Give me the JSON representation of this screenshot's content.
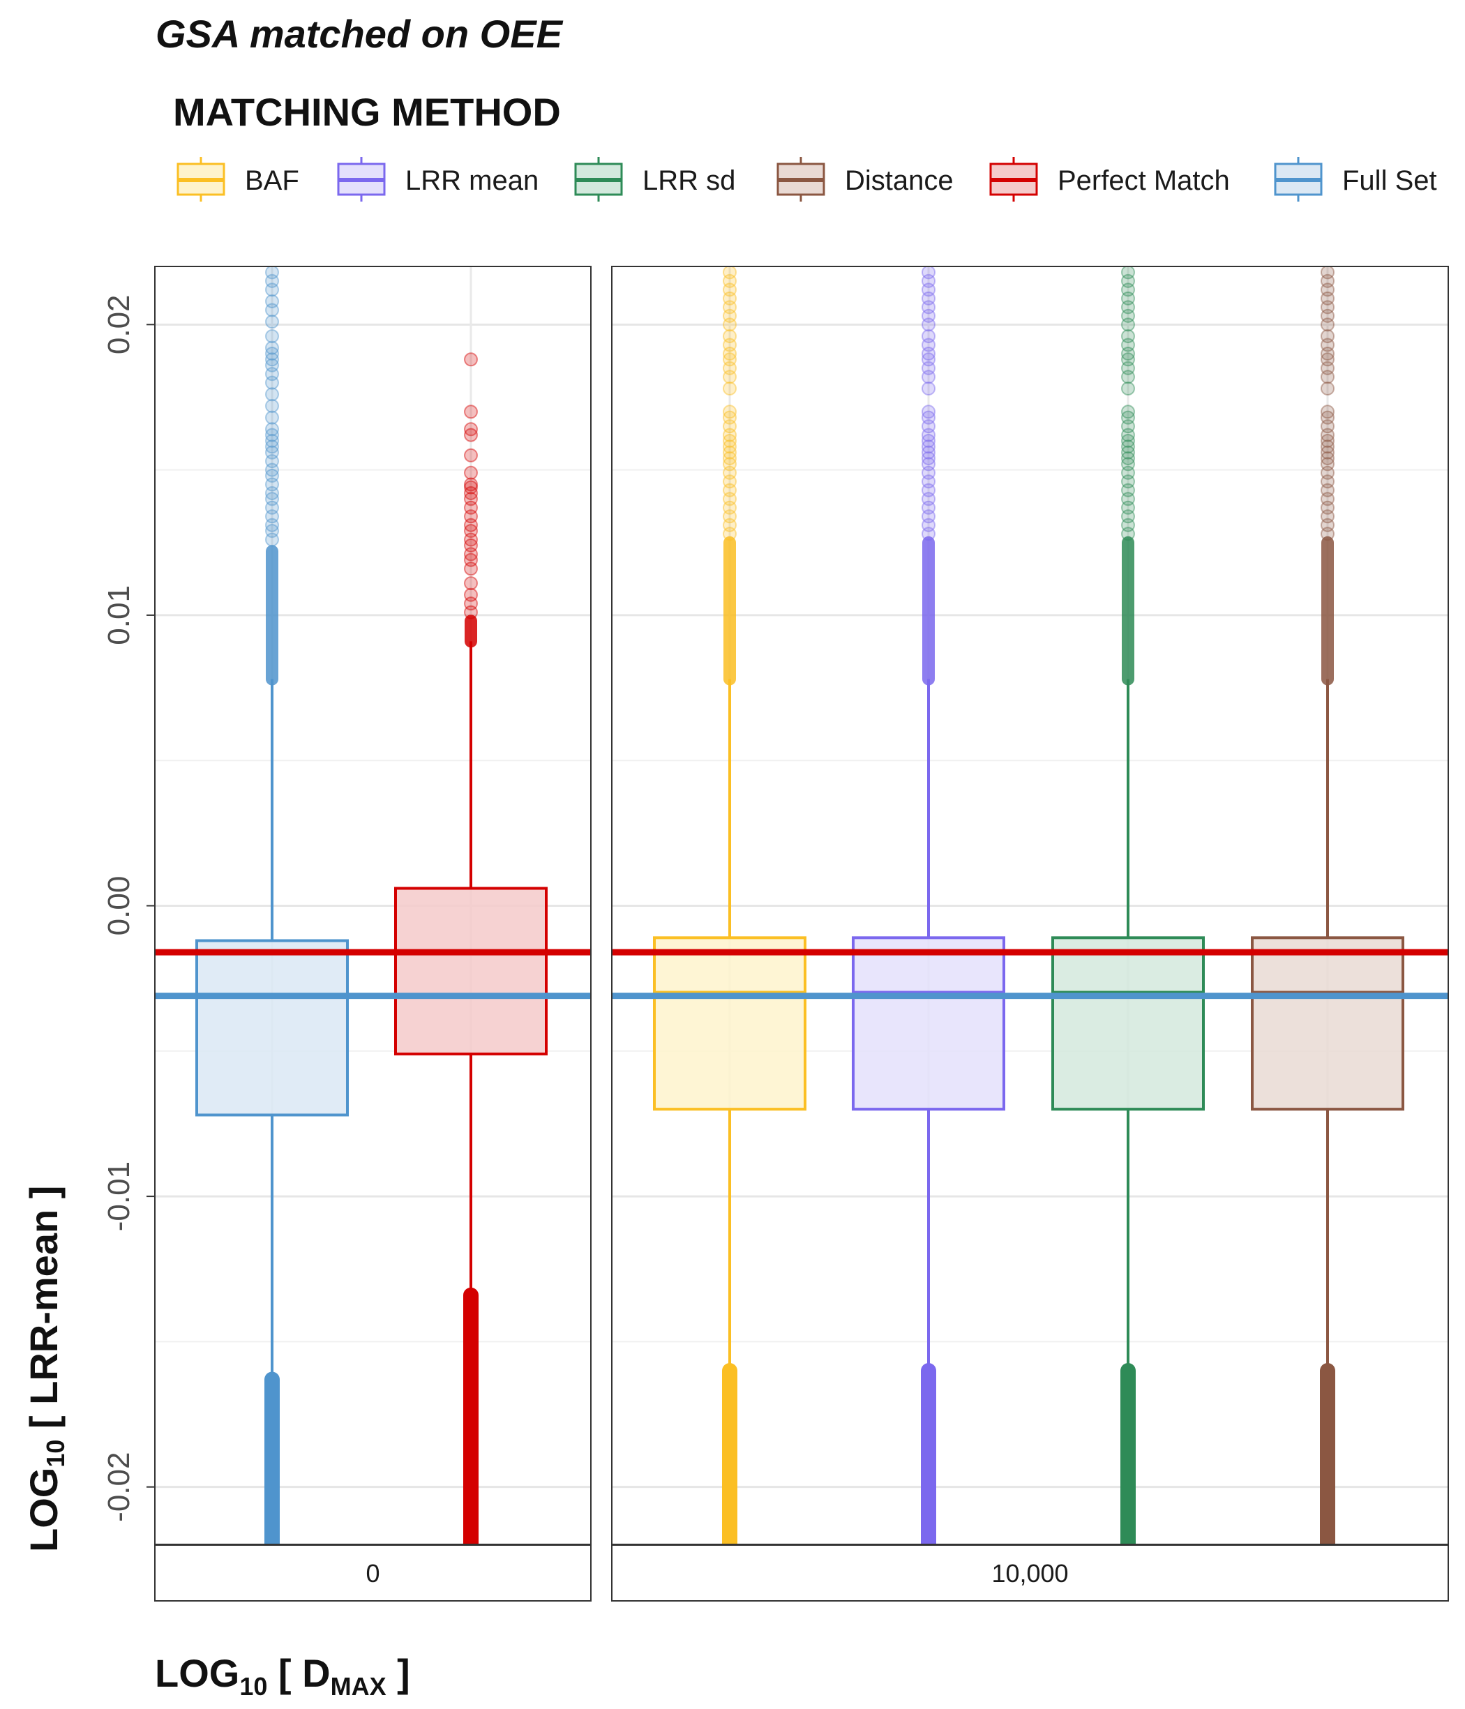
{
  "chart_data": {
    "type": "box",
    "title": "GSA matched on OEE",
    "legend": {
      "title": "MATCHING METHOD",
      "position": "top",
      "entries": [
        {
          "name": "BAF",
          "color": "#FBBF24",
          "fill": "#FEF3CD"
        },
        {
          "name": "LRR mean",
          "color": "#7B68EE",
          "fill": "#E4E0FC"
        },
        {
          "name": "LRR sd",
          "color": "#2E8B57",
          "fill": "#D3E9DD"
        },
        {
          "name": "Distance",
          "color": "#8B5742",
          "fill": "#E9DAD4"
        },
        {
          "name": "Perfect Match",
          "color": "#D40000",
          "fill": "#F5CACA"
        },
        {
          "name": "Full Set",
          "color": "#4F94CD",
          "fill": "#DBE8F4"
        }
      ]
    },
    "xlabel": {
      "main": "LOG",
      "sub": "10",
      "rest": " [ D",
      "sub2": "MAX",
      "end": " ]"
    },
    "ylabel": {
      "main": "LOG",
      "sub": "10",
      "rest": " [ LRR-mean ]"
    },
    "ylim": [
      -0.022,
      0.022
    ],
    "yticks": [
      -0.02,
      -0.01,
      0.0,
      0.01,
      0.02
    ],
    "ytick_labels": [
      "-0.02",
      "-0.01",
      "0.00",
      "0.01",
      "0.02"
    ],
    "grid": true,
    "reference_lines": [
      {
        "series": "Perfect Match",
        "y": -0.0016
      },
      {
        "series": "Full Set",
        "y": -0.0031
      }
    ],
    "facets": [
      {
        "label": "0",
        "boxes": [
          {
            "series": "Full Set",
            "q1": -0.0072,
            "median": -0.0031,
            "q3": -0.0012,
            "whisker_low": -0.0163,
            "whisker_high": 0.0078,
            "outlier_high_dense_top": 0.0122,
            "outlier_high_max": 0.0218,
            "outliers_high": [
              0.0126,
              0.0129,
              0.0131,
              0.0134,
              0.0137,
              0.014,
              0.0142,
              0.0145,
              0.0148,
              0.015,
              0.0153,
              0.0156,
              0.0158,
              0.016,
              0.0162,
              0.0164,
              0.0168,
              0.0172,
              0.0176,
              0.018,
              0.0183,
              0.0186,
              0.0188,
              0.019,
              0.0192,
              0.0196,
              0.0201,
              0.0205,
              0.0208,
              0.0212,
              0.0215,
              0.0218
            ]
          },
          {
            "series": "Perfect Match",
            "q1": -0.0051,
            "median": -0.0016,
            "q3": 0.0006,
            "whisker_low": -0.0134,
            "whisker_high": 0.0091,
            "outlier_high_dense_top": 0.0098,
            "outlier_high_max": 0.0188,
            "outliers_high": [
              0.0101,
              0.0104,
              0.0107,
              0.0111,
              0.0116,
              0.0119,
              0.0121,
              0.0124,
              0.0126,
              0.0129,
              0.0131,
              0.0134,
              0.0137,
              0.014,
              0.0142,
              0.0144,
              0.0145,
              0.0149,
              0.0155,
              0.0162,
              0.0164,
              0.017,
              0.0188
            ]
          }
        ]
      },
      {
        "label": "10,000",
        "boxes": [
          {
            "series": "BAF",
            "q1": -0.007,
            "median": -0.003,
            "q3": -0.0011,
            "whisker_low": -0.016,
            "whisker_high": 0.0078,
            "outlier_high_dense_top": 0.0125,
            "outlier_high_max": 0.0218,
            "outliers_high": [
              0.0128,
              0.0131,
              0.0134,
              0.0137,
              0.014,
              0.0143,
              0.0146,
              0.0149,
              0.0152,
              0.0154,
              0.0156,
              0.0158,
              0.016,
              0.0162,
              0.0165,
              0.0168,
              0.017,
              0.0178,
              0.0182,
              0.0185,
              0.0188,
              0.019,
              0.0193,
              0.0196,
              0.02,
              0.0203,
              0.0206,
              0.0209,
              0.0212,
              0.0215,
              0.0218
            ]
          },
          {
            "series": "LRR mean",
            "q1": -0.007,
            "median": -0.003,
            "q3": -0.0011,
            "whisker_low": -0.016,
            "whisker_high": 0.0078,
            "outlier_high_dense_top": 0.0125,
            "outlier_high_max": 0.0218,
            "outliers_high": [
              0.0128,
              0.0131,
              0.0134,
              0.0137,
              0.014,
              0.0143,
              0.0146,
              0.0149,
              0.0152,
              0.0154,
              0.0156,
              0.0158,
              0.016,
              0.0162,
              0.0165,
              0.0168,
              0.017,
              0.0178,
              0.0182,
              0.0185,
              0.0188,
              0.019,
              0.0193,
              0.0196,
              0.02,
              0.0203,
              0.0206,
              0.0209,
              0.0212,
              0.0215,
              0.0218
            ]
          },
          {
            "series": "LRR sd",
            "q1": -0.007,
            "median": -0.003,
            "q3": -0.0011,
            "whisker_low": -0.016,
            "whisker_high": 0.0078,
            "outlier_high_dense_top": 0.0125,
            "outlier_high_max": 0.0218,
            "outliers_high": [
              0.0128,
              0.0131,
              0.0134,
              0.0137,
              0.014,
              0.0143,
              0.0146,
              0.0149,
              0.0152,
              0.0154,
              0.0156,
              0.0158,
              0.016,
              0.0162,
              0.0165,
              0.0168,
              0.017,
              0.0178,
              0.0182,
              0.0185,
              0.0188,
              0.019,
              0.0193,
              0.0196,
              0.02,
              0.0203,
              0.0206,
              0.0209,
              0.0212,
              0.0215,
              0.0218
            ]
          },
          {
            "series": "Distance",
            "q1": -0.007,
            "median": -0.003,
            "q3": -0.0011,
            "whisker_low": -0.016,
            "whisker_high": 0.0078,
            "outlier_high_dense_top": 0.0125,
            "outlier_high_max": 0.0218,
            "outliers_high": [
              0.0128,
              0.0131,
              0.0134,
              0.0137,
              0.014,
              0.0143,
              0.0146,
              0.0149,
              0.0152,
              0.0154,
              0.0156,
              0.0158,
              0.016,
              0.0162,
              0.0165,
              0.0168,
              0.017,
              0.0178,
              0.0182,
              0.0185,
              0.0188,
              0.019,
              0.0193,
              0.0196,
              0.02,
              0.0203,
              0.0206,
              0.0209,
              0.0212,
              0.0215,
              0.0218
            ]
          }
        ]
      }
    ]
  }
}
